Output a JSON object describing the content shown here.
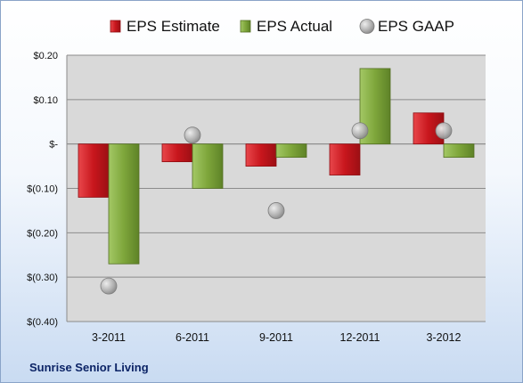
{
  "colors": {
    "estimate": "#c8161d",
    "actual": "#7ea63b",
    "gaap": "#a6a6a6",
    "plot_bg": "#d9d9d9",
    "company_text": "#0c2466"
  },
  "chart_data": {
    "type": "bar",
    "categories": [
      "3-2011",
      "6-2011",
      "9-2011",
      "12-2011",
      "3-2012"
    ],
    "series": [
      {
        "name": "EPS Estimate",
        "kind": "bar",
        "values": [
          -0.12,
          -0.04,
          -0.05,
          -0.07,
          0.07
        ]
      },
      {
        "name": "EPS Actual",
        "kind": "bar",
        "values": [
          -0.27,
          -0.1,
          -0.03,
          0.17,
          -0.03
        ]
      },
      {
        "name": "EPS GAAP",
        "kind": "marker",
        "values": [
          -0.32,
          0.02,
          -0.15,
          0.03,
          0.03
        ]
      }
    ],
    "ylim": [
      -0.4,
      0.2
    ],
    "yticks": [
      0.2,
      0.1,
      0.0,
      -0.1,
      -0.2,
      -0.3,
      -0.4
    ],
    "ytick_labels": [
      "$0.20",
      "$0.10",
      "$-",
      "$(0.10)",
      "$(0.20)",
      "$(0.30)",
      "$(0.40)"
    ],
    "grid": true,
    "legend_position": "top",
    "footer": "Sunrise Senior Living"
  }
}
